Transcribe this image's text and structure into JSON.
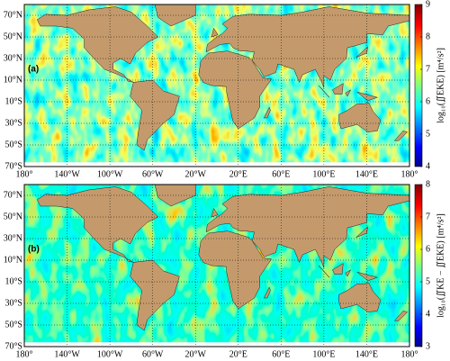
{
  "lon_range": [
    -180,
    180
  ],
  "lat_range": [
    -70,
    80
  ],
  "lon_ticks": [
    {
      "value": -180,
      "label": "180°"
    },
    {
      "value": -140,
      "label": "140°W"
    },
    {
      "value": -100,
      "label": "100°W"
    },
    {
      "value": -60,
      "label": "60°W"
    },
    {
      "value": -20,
      "label": "20°W"
    },
    {
      "value": 20,
      "label": "20°E"
    },
    {
      "value": 60,
      "label": "60°E"
    },
    {
      "value": 100,
      "label": "100°E"
    },
    {
      "value": 140,
      "label": "140°E"
    },
    {
      "value": 180,
      "label": "180°"
    }
  ],
  "lat_ticks": [
    {
      "value": 70,
      "label": "70°N"
    },
    {
      "value": 50,
      "label": "50°N"
    },
    {
      "value": 30,
      "label": "30°N"
    },
    {
      "value": 10,
      "label": "10°N"
    },
    {
      "value": -10,
      "label": "10°S"
    },
    {
      "value": -30,
      "label": "30°S"
    },
    {
      "value": -50,
      "label": "50°S"
    },
    {
      "value": -70,
      "label": "70°S"
    }
  ],
  "panels": [
    {
      "label": "(a)",
      "colorbar": {
        "label": "log₁₀(∬EKE) [m⁴/s²]",
        "lim": [
          4,
          9
        ],
        "ticks": [
          4,
          5,
          6,
          7,
          8,
          9
        ]
      }
    },
    {
      "label": "(b)",
      "colorbar": {
        "label": "log₁₀(∬KE − ∬EKE) [m⁴/s²]",
        "lim": [
          3,
          8
        ],
        "ticks": [
          3,
          4,
          5,
          6,
          7,
          8
        ]
      }
    }
  ]
}
